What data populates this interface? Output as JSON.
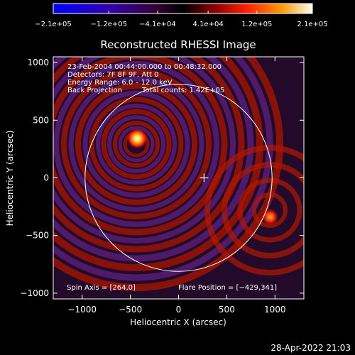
{
  "chart_data": {
    "type": "heatmap",
    "title": "Reconstructed RHESSI Image",
    "xlabel": "Heliocentric X (arcsec)",
    "ylabel": "Heliocentric Y (arcsec)",
    "xlim": [
      -1300,
      1300
    ],
    "ylim": [
      -1050,
      1050
    ],
    "x_ticks": [
      -1000,
      -500,
      0,
      500,
      1000
    ],
    "y_ticks": [
      -1000,
      -500,
      0,
      500,
      1000
    ],
    "x_tick_labels": [
      "−1000",
      "−500",
      "0",
      "500",
      "1000"
    ],
    "y_tick_labels": [
      "−1000",
      "−500",
      "0",
      "500",
      "1000"
    ],
    "colorbar": {
      "min": -210000,
      "max": 210000,
      "ticks": [
        -210000,
        -120000,
        -41000,
        41000,
        120000,
        210000
      ],
      "tick_labels": [
        "−2.1e+05",
        "−1.2e+05",
        "−4.1e+04",
        "4.1e+04",
        "1.2e+05",
        "2.1e+05"
      ],
      "colors": [
        "#0000ff",
        "#3300aa",
        "#440044",
        "#000000",
        "#880000",
        "#ff3300",
        "#ffaa00",
        "#ffffcc"
      ]
    },
    "solar_disk_radius": 970,
    "sources": [
      {
        "x": -429,
        "y": 341,
        "intensity": 210000
      },
      {
        "x": 950,
        "y": -340,
        "intensity": 160000
      }
    ],
    "annotations": {
      "time_range": "23-Feb-2004 00:44:00.000 to 00:48:32.000",
      "detectors": "Detectors: 7F 8F 9F, Att 0",
      "energy": "Energy Range: 6.0 – 12.0 keV",
      "method": "Back Projection",
      "counts": "Total counts: 1.42E+05",
      "spin_axis": "Spin Axis = [264,0]",
      "flare_position": "Flare Position = [−429,341]"
    },
    "spin_axis": [
      264,
      0
    ]
  },
  "footer": {
    "timestamp": "28-Apr-2022 21:03"
  }
}
